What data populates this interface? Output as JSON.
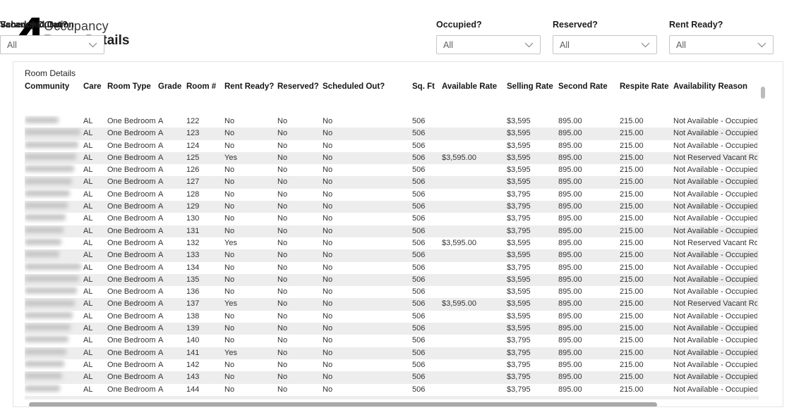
{
  "header": {
    "app_title": "Occupancy",
    "page_title": "Room Details",
    "logo_icon": "brand-a-logo",
    "logo_color": "#000000"
  },
  "filters": [
    {
      "label": "Occupied?",
      "value": "All"
    },
    {
      "label": "Reserved?",
      "value": "All"
    },
    {
      "label": "Rent Ready?",
      "value": "All"
    },
    {
      "label": "Scheduled Out?",
      "value": "All"
    },
    {
      "label": "Vacancy Duration",
      "value": "All"
    }
  ],
  "table": {
    "title": "Room Details",
    "columns": [
      "Community",
      "Care",
      "Room Type",
      "Grade",
      "Room #",
      "Rent Ready?",
      "Reserved?",
      "Scheduled Out?",
      "Sq. Ft",
      "Available Rate",
      "Selling Rate",
      "Second Rate",
      "Respite Rate",
      "Availability Reason"
    ],
    "community_redacted": true,
    "band_color": "#ededed",
    "rows": [
      [
        "",
        "AL",
        "One Bedroom",
        "A",
        "122",
        "No",
        "No",
        "No",
        "506",
        "",
        "$3,595",
        "895.00",
        "215.00",
        "Not Available - Occupied"
      ],
      [
        "",
        "AL",
        "One Bedroom",
        "A",
        "123",
        "No",
        "No",
        "No",
        "506",
        "",
        "$3,595",
        "895.00",
        "215.00",
        "Not Available - Occupied"
      ],
      [
        "",
        "AL",
        "One Bedroom",
        "A",
        "124",
        "No",
        "No",
        "No",
        "506",
        "",
        "$3,595",
        "895.00",
        "215.00",
        "Not Available - Occupied"
      ],
      [
        "",
        "AL",
        "One Bedroom",
        "A",
        "125",
        "Yes",
        "No",
        "No",
        "506",
        "$3,595.00",
        "$3,595",
        "895.00",
        "215.00",
        "Not Reserved Vacant Room"
      ],
      [
        "",
        "AL",
        "One Bedroom",
        "A",
        "126",
        "No",
        "No",
        "No",
        "506",
        "",
        "$3,595",
        "895.00",
        "215.00",
        "Not Available - Occupied"
      ],
      [
        "",
        "AL",
        "One Bedroom",
        "A",
        "127",
        "No",
        "No",
        "No",
        "506",
        "",
        "$3,595",
        "895.00",
        "215.00",
        "Not Available - Occupied"
      ],
      [
        "",
        "AL",
        "One Bedroom",
        "A",
        "128",
        "No",
        "No",
        "No",
        "506",
        "",
        "$3,795",
        "895.00",
        "215.00",
        "Not Available - Occupied"
      ],
      [
        "",
        "AL",
        "One Bedroom",
        "A",
        "129",
        "No",
        "No",
        "No",
        "506",
        "",
        "$3,795",
        "895.00",
        "215.00",
        "Not Available - Occupied"
      ],
      [
        "",
        "AL",
        "One Bedroom",
        "A",
        "130",
        "No",
        "No",
        "No",
        "506",
        "",
        "$3,795",
        "895.00",
        "215.00",
        "Not Available - Occupied"
      ],
      [
        "",
        "AL",
        "One Bedroom",
        "A",
        "131",
        "No",
        "No",
        "No",
        "506",
        "",
        "$3,795",
        "895.00",
        "215.00",
        "Not Available - Occupied"
      ],
      [
        "",
        "AL",
        "One Bedroom",
        "A",
        "132",
        "Yes",
        "No",
        "No",
        "506",
        "$3,595.00",
        "$3,595",
        "895.00",
        "215.00",
        "Not Reserved Vacant Room"
      ],
      [
        "",
        "AL",
        "One Bedroom",
        "A",
        "133",
        "No",
        "No",
        "No",
        "506",
        "",
        "$3,595",
        "895.00",
        "215.00",
        "Not Available - Occupied"
      ],
      [
        "",
        "AL",
        "One Bedroom",
        "A",
        "134",
        "No",
        "No",
        "No",
        "506",
        "",
        "$3,795",
        "895.00",
        "215.00",
        "Not Available - Occupied"
      ],
      [
        "",
        "AL",
        "One Bedroom",
        "A",
        "135",
        "No",
        "No",
        "No",
        "506",
        "",
        "$3,595",
        "895.00",
        "215.00",
        "Not Available - Occupied"
      ],
      [
        "",
        "AL",
        "One Bedroom",
        "A",
        "136",
        "No",
        "No",
        "No",
        "506",
        "",
        "$3,595",
        "895.00",
        "215.00",
        "Not Available - Occupied"
      ],
      [
        "",
        "AL",
        "One Bedroom",
        "A",
        "137",
        "Yes",
        "No",
        "No",
        "506",
        "$3,595.00",
        "$3,595",
        "895.00",
        "215.00",
        "Not Reserved Vacant Room"
      ],
      [
        "",
        "AL",
        "One Bedroom",
        "A",
        "138",
        "No",
        "No",
        "No",
        "506",
        "",
        "$3,595",
        "895.00",
        "215.00",
        "Not Available - Occupied"
      ],
      [
        "",
        "AL",
        "One Bedroom",
        "A",
        "139",
        "No",
        "No",
        "No",
        "506",
        "",
        "$3,595",
        "895.00",
        "215.00",
        "Not Available - Occupied"
      ],
      [
        "",
        "AL",
        "One Bedroom",
        "A",
        "140",
        "No",
        "No",
        "No",
        "506",
        "",
        "$3,795",
        "895.00",
        "215.00",
        "Not Available - Occupied"
      ],
      [
        "",
        "AL",
        "One Bedroom",
        "A",
        "141",
        "Yes",
        "No",
        "No",
        "506",
        "",
        "$3,795",
        "895.00",
        "215.00",
        "Not Available - Occupied"
      ],
      [
        "",
        "AL",
        "One Bedroom",
        "A",
        "142",
        "No",
        "No",
        "No",
        "506",
        "",
        "$3,795",
        "895.00",
        "215.00",
        "Not Available - Occupied"
      ],
      [
        "",
        "AL",
        "One Bedroom",
        "A",
        "143",
        "No",
        "No",
        "No",
        "506",
        "",
        "$3,795",
        "895.00",
        "215.00",
        "Not Available - Occupied"
      ],
      [
        "",
        "AL",
        "One Bedroom",
        "A",
        "144",
        "No",
        "No",
        "No",
        "506",
        "",
        "$3,795",
        "895.00",
        "215.00",
        "Not Available - Occupied"
      ]
    ]
  },
  "scrollbars": {
    "vertical_thumb": true,
    "horizontal_thumb": true
  }
}
